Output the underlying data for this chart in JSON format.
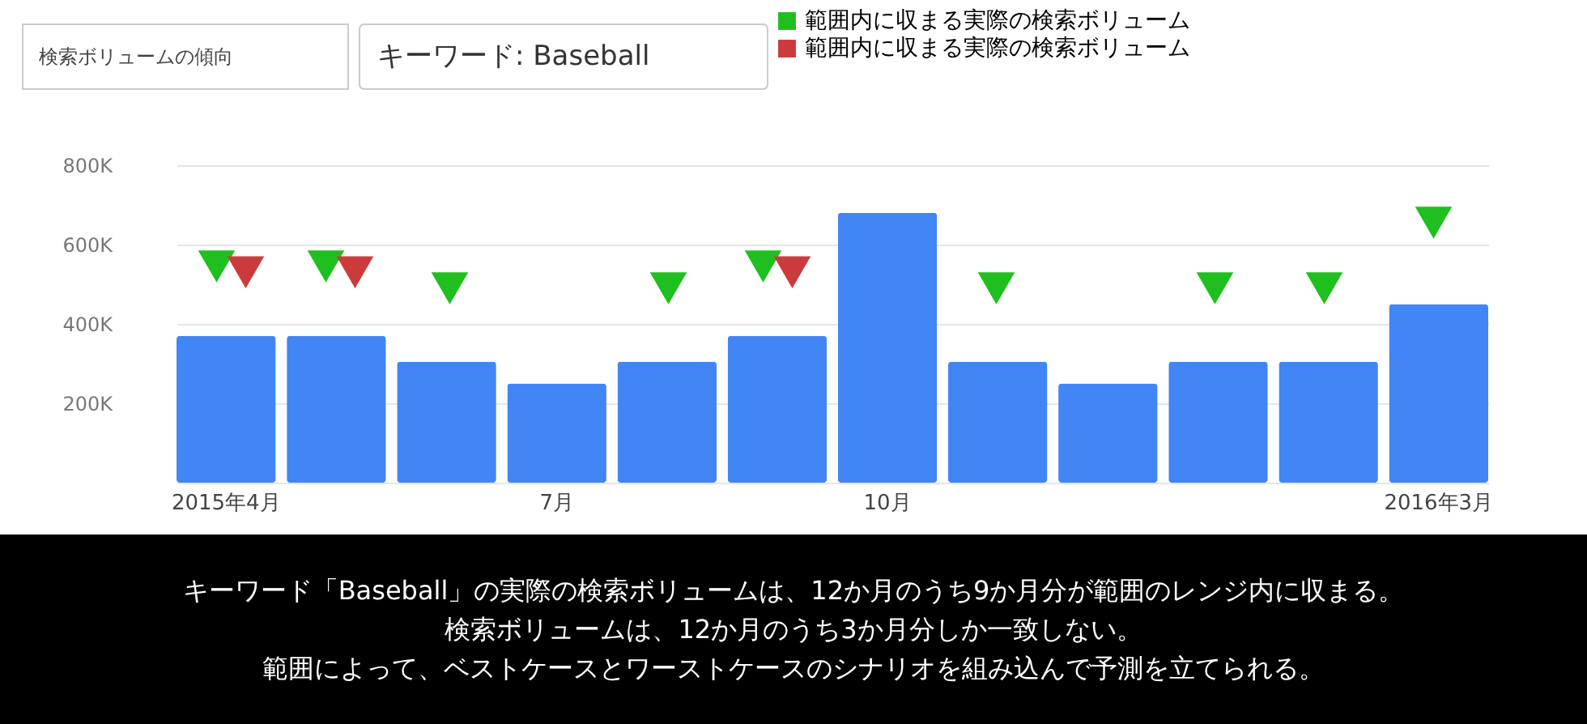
{
  "chart_data": {
    "type": "bar",
    "categories": [
      "2015年4月",
      null,
      null,
      "7月",
      null,
      null,
      "10月",
      null,
      null,
      null,
      null,
      "2016年3月"
    ],
    "series": [
      {
        "color": "#4285f4",
        "values": [
          370000,
          370000,
          305000,
          250000,
          305000,
          370000,
          680000,
          305000,
          250000,
          305000,
          305000,
          450000
        ]
      },
      {
        "type": "scatter",
        "name": "範囲内に収まる実際の検索ボリューム",
        "color": "#1fbf1f",
        "values": [
          545000,
          545000,
          490000,
          null,
          490000,
          545000,
          null,
          490000,
          null,
          490000,
          490000,
          655000
        ]
      },
      {
        "type": "scatter",
        "name": "範囲内に収まる実際の検索ボリューム",
        "color": "#cc3b3b",
        "values": [
          530000,
          530000,
          null,
          null,
          null,
          530000,
          null,
          null,
          null,
          null,
          null,
          null
        ]
      }
    ],
    "ylim": [
      0,
      800000
    ],
    "yticks": [
      {
        "value": 0,
        "label": null
      },
      {
        "value": 200000,
        "label": "200K"
      },
      {
        "value": 400000,
        "label": "400K"
      },
      {
        "value": 600000,
        "label": "600K"
      },
      {
        "value": 800000,
        "label": "800K"
      }
    ],
    "grid": "y",
    "legend": "top",
    "marker": "triangle",
    "annotations": [
      "検索ボリュームの傾向",
      "キーワード: Baseball",
      "キーワード「Baseball」の実際の検索ボリュームは、12か月のうち9か月分が範囲のレンジ内に収まる。",
      "検索ボリュームは、12か月のうち3か月分しか一致しない。",
      "範囲によって、ベストケースとワーストケースのシナリオを組み込んで予測を立てられる。"
    ]
  }
}
